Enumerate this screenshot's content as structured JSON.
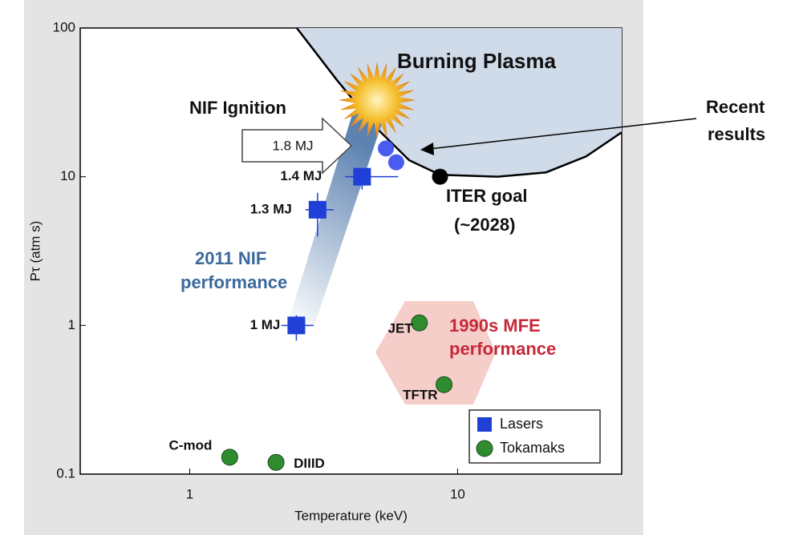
{
  "chart_data": {
    "type": "scatter",
    "x_label": "Temperature (keV)",
    "y_label": "Pτ (atm s)",
    "xlim": [
      0.39,
      41
    ],
    "ylim": [
      0.1,
      100
    ],
    "log_x": true,
    "log_y": true,
    "xticks": [
      1,
      10
    ],
    "yticks": [
      0.1,
      1,
      10,
      100
    ],
    "legend_position": "lower right",
    "series": [
      {
        "name": "Lasers",
        "color": "#1f3fd6",
        "marker": "square",
        "x": [
          2.5,
          3.0,
          4.4
        ],
        "values": [
          1,
          6,
          10
        ],
        "labels": [
          "1 MJ",
          "1.3 MJ",
          "1.4 MJ"
        ],
        "x_err_low": [
          2.2,
          2.7,
          3.8
        ],
        "x_err_high": [
          2.9,
          3.45,
          6.0
        ],
        "y_err_low": [
          0.79,
          3.96,
          8.2
        ],
        "y_err_high": [
          1.17,
          7.8,
          11.5
        ]
      },
      {
        "name": "Tokamaks",
        "color": "#2e8b2e",
        "marker": "circle",
        "x": [
          1.41,
          2.1,
          7.2,
          8.9
        ],
        "values": [
          0.13,
          0.12,
          1.04,
          0.4
        ],
        "labels": [
          "C-mod",
          "DIIID",
          "JET",
          "TFTR"
        ]
      }
    ],
    "recent_results": {
      "label": "Recent results",
      "color": "#4a5cf0",
      "x": [
        5.4,
        5.9
      ],
      "values": [
        15.5,
        12.5
      ]
    },
    "iter_goal": {
      "label": "ITER goal",
      "sublabel": "(~2028)",
      "color": "#000000",
      "x": 8.6,
      "value": 10
    },
    "burning_plasma": {
      "label": "Burning Plasma",
      "color": "#cfdbe8",
      "x": [
        2.51,
        3.55,
        5.0,
        6.6,
        8.6,
        14.1,
        21.4,
        30.2,
        41
      ],
      "values": [
        100,
        44.5,
        21.1,
        12.9,
        10.3,
        10,
        10.7,
        13.7,
        19.9
      ]
    },
    "nif_ignition": {
      "label": "NIF Ignition",
      "arrow_label": "1.8 MJ"
    },
    "nif_performance": {
      "label": [
        "2011 NIF",
        "performance"
      ]
    },
    "mfe": {
      "label": [
        "1990s MFE",
        "performance"
      ]
    }
  }
}
